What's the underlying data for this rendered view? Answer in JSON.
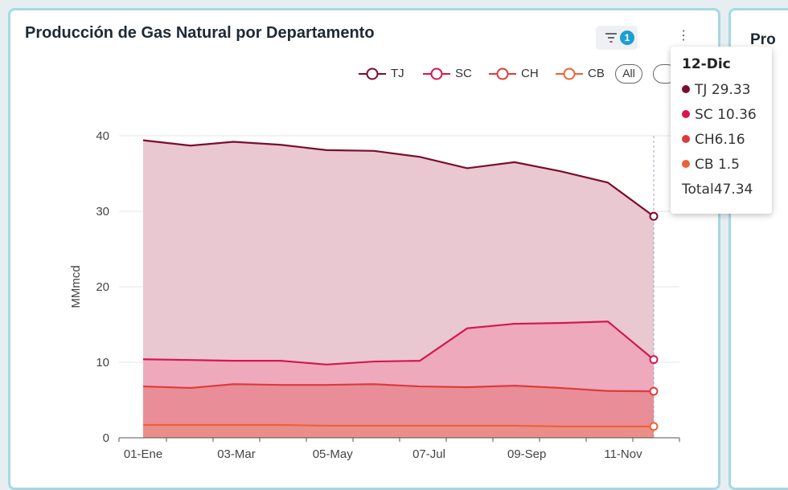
{
  "card": {
    "title": "Producción de Gas Natural por Departamento",
    "filter_badge": "1",
    "more_label": "⋮"
  },
  "card2": {
    "title_fragment": "Pro"
  },
  "legend": {
    "items": [
      {
        "label": "TJ",
        "color": "#7b0c2e"
      },
      {
        "label": "SC",
        "color": "#d6164f"
      },
      {
        "label": "CH",
        "color": "#de3b3b"
      },
      {
        "label": "CB",
        "color": "#ed6233"
      }
    ],
    "all_label": "All"
  },
  "tooltip": {
    "title": "12-Dic",
    "rows": [
      {
        "label": "TJ",
        "value": "29.33",
        "color": "#7b0c2e"
      },
      {
        "label": "SC",
        "value": "10.36",
        "color": "#d6164f"
      },
      {
        "label": "CH",
        "value": "6.16",
        "color": "#de3b3b"
      },
      {
        "label": "CB",
        "value": "1.5",
        "color": "#ed6233"
      }
    ],
    "total_label": "Total",
    "total_value": "47.34"
  },
  "chart_data": {
    "type": "area",
    "title": "Producción de Gas Natural por Departamento",
    "xlabel": "",
    "ylabel": "MMmcd",
    "ylim": [
      0,
      40
    ],
    "yticks": [
      0,
      10,
      20,
      30,
      40
    ],
    "x_tick_labels": [
      "01-Ene",
      "03-Mar",
      "05-May",
      "07-Jul",
      "09-Sep",
      "11-Nov"
    ],
    "x": [
      0,
      31,
      59,
      90,
      120,
      151,
      181,
      212,
      243,
      273,
      304,
      334
    ],
    "x_tick_positions": [
      0,
      61,
      124,
      187,
      251,
      314
    ],
    "grid": true,
    "series": [
      {
        "name": "TJ",
        "color": "#7b0c2e",
        "fill": "#e9c8d1",
        "values": [
          39.4,
          38.7,
          39.2,
          38.8,
          38.1,
          38.0,
          37.2,
          35.7,
          36.5,
          35.3,
          33.8,
          29.33
        ]
      },
      {
        "name": "SC",
        "color": "#d6164f",
        "fill": "#eeaabc",
        "values": [
          10.4,
          10.3,
          10.2,
          10.2,
          9.7,
          10.1,
          10.2,
          14.5,
          15.1,
          15.2,
          15.4,
          10.36
        ]
      },
      {
        "name": "CH",
        "color": "#de3b3b",
        "fill": "#e98e98",
        "values": [
          6.8,
          6.6,
          7.1,
          7.0,
          7.0,
          7.1,
          6.8,
          6.7,
          6.9,
          6.6,
          6.2,
          6.16
        ]
      },
      {
        "name": "CB",
        "color": "#ed6233",
        "fill": "#ea8e8a",
        "values": [
          1.7,
          1.7,
          1.7,
          1.7,
          1.6,
          1.6,
          1.6,
          1.6,
          1.6,
          1.5,
          1.5,
          1.5
        ]
      }
    ],
    "highlight_index": 11
  }
}
